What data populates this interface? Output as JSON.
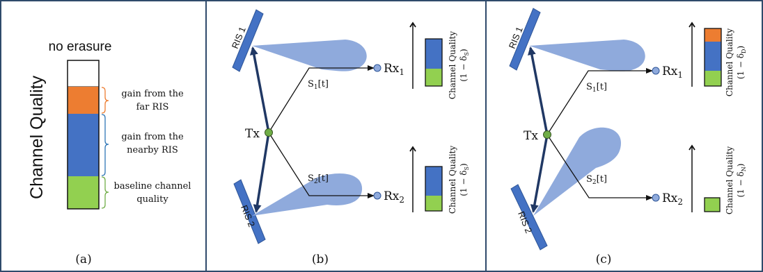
{
  "colors": {
    "border": "#2f4a6b",
    "ris_blue": "#4472c4",
    "ris_outline": "#2e5597",
    "beam": "#8faadc",
    "arrow_dark": "#203864",
    "tx_green": "#70ad47",
    "rx_blue": "#8faadc",
    "bar_orange": "#ed7d31",
    "bar_blue": "#4472c4",
    "bar_green": "#92d050",
    "brace_orange": "#ed7d31",
    "brace_blue": "#2e75b6",
    "brace_green": "#70ad47"
  },
  "panel_a": {
    "axis_title": "Channel Quality",
    "top_label": "no erasure",
    "caption": "(a)",
    "annotations": {
      "far_line1": "gain from the",
      "far_line2": "far RIS",
      "near_line1": "gain from the",
      "near_line2": "nearby RIS",
      "base_line1": "baseline channel",
      "base_line2": "quality"
    }
  },
  "panel_b": {
    "caption": "(b)",
    "ris1": "RIS 1",
    "ris2": "RIS 2",
    "tx": "Tx",
    "rx1": "Rx",
    "rx1_sub": "1",
    "rx2": "Rx",
    "rx2_sub": "2",
    "s1": "S",
    "s1_sub": "1",
    "s1_tail": "[t]",
    "s2": "S",
    "s2_sub": "2",
    "s2_tail": "[t]",
    "cq_label": "Channel Quality",
    "cq1_formula_pre": "(1 − δ",
    "cq1_formula_sub": "S",
    "cq1_formula_post": ")",
    "cq2_formula_pre": "(1 − δ",
    "cq2_formula_sub": "S",
    "cq2_formula_post": ")"
  },
  "panel_c": {
    "caption": "(c)",
    "ris1": "RIS 1",
    "ris2": "RIS 2",
    "tx": "Tx",
    "rx1": "Rx",
    "rx1_sub": "1",
    "rx2": "Rx",
    "rx2_sub": "2",
    "s1": "S",
    "s1_sub": "1",
    "s1_tail": "[t]",
    "s2": "S",
    "s2_sub": "2",
    "s2_tail": "[t]",
    "cq_label": "Channel Quality",
    "cq1_formula_pre": "(1 − δ",
    "cq1_formula_sub": "D",
    "cq1_formula_post": ")",
    "cq2_formula_pre": "(1 − δ",
    "cq2_formula_sub": "N",
    "cq2_formula_post": ")"
  }
}
